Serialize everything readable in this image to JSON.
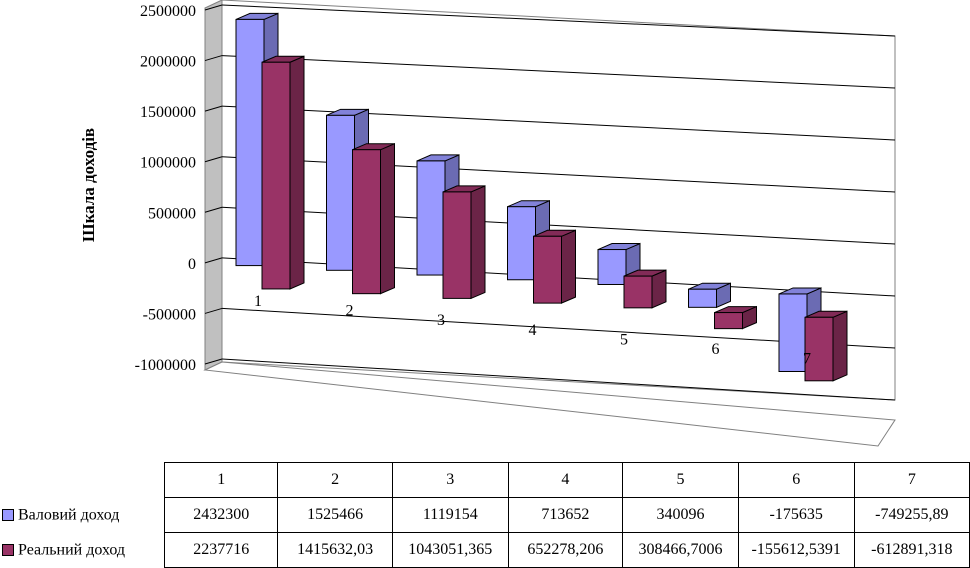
{
  "chart_data": {
    "type": "bar",
    "ylabel": "Шкала доходів",
    "ylim": [
      -1000000,
      2500000
    ],
    "yticks": [
      "2500000",
      "2000000",
      "1500000",
      "1000000",
      "500000",
      "0",
      "-500000",
      "-1000000"
    ],
    "categories": [
      "1",
      "2",
      "3",
      "4",
      "5",
      "6",
      "7"
    ],
    "legend": "table-rows",
    "grid": true,
    "series": [
      {
        "name": "Валовий доход",
        "color": "#9999ff",
        "values": [
          2432300,
          1525466,
          1119154,
          713652,
          340096,
          -175635,
          -749255.89
        ],
        "labels": [
          "2432300",
          "1525466",
          "1119154",
          "713652",
          "340096",
          "-175635",
          "-749255,89"
        ]
      },
      {
        "name": "Реальний доход",
        "color": "#993366",
        "values": [
          2237716,
          1415632.03,
          1043051.365,
          652278.206,
          308466.7006,
          -155612.5391,
          -612891.318
        ],
        "labels": [
          "2237716",
          "1415632,03",
          "1043051,365",
          "652278,206",
          "308466,7006",
          "-155612,5391",
          "-612891,318"
        ]
      }
    ]
  }
}
